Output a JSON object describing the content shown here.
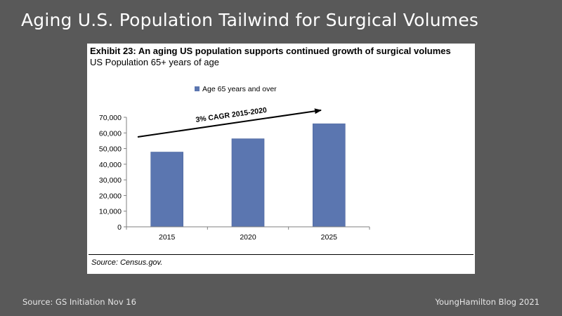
{
  "slide": {
    "title": "Aging U.S. Population Tailwind for Surgical Volumes",
    "footer_left": "Source: GS Initiation Nov 16",
    "footer_right": "YoungHamilton Blog 2021"
  },
  "exhibit": {
    "title": "Exhibit 23: An aging US population supports continued growth of surgical volumes",
    "subtitle": "US Population 65+ years of age",
    "source": "Source: Census.gov."
  },
  "chart_data": {
    "type": "bar",
    "categories": [
      "2015",
      "2020",
      "2025"
    ],
    "series": [
      {
        "name": "Age 65 years and over",
        "values": [
          47800,
          56300,
          65900
        ]
      }
    ],
    "yticks": [
      "0",
      "10,000",
      "20,000",
      "30,000",
      "40,000",
      "50,000",
      "60,000",
      "70,000"
    ],
    "ylim": [
      0,
      70000
    ],
    "legend_position": "top-center",
    "grid": false,
    "annotation": "3% CAGR 2015-2020",
    "colors": {
      "bar": "#5b76b0",
      "bar_edge": "#4a639a"
    }
  }
}
